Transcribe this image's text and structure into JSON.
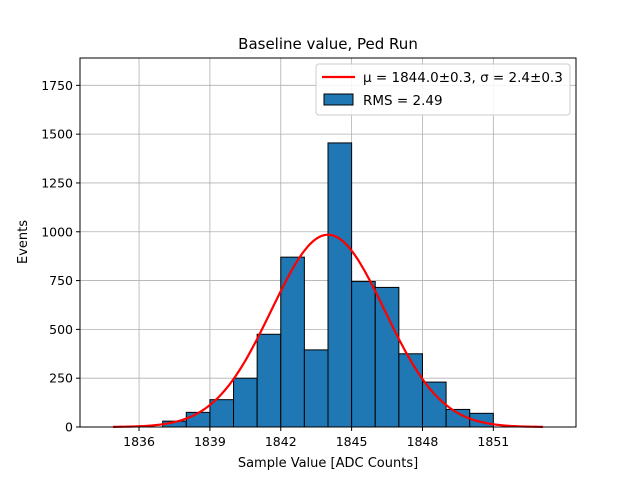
{
  "chart_data": {
    "type": "bar",
    "title": "Baseline value, Ped Run",
    "xlabel": "Sample Value [ADC Counts]",
    "ylabel": "Events",
    "xlim": [
      1833.5,
      1854.5
    ],
    "ylim": [
      0,
      1890
    ],
    "xticks": [
      1836,
      1839,
      1842,
      1845,
      1848,
      1851
    ],
    "yticks": [
      0,
      250,
      500,
      750,
      1000,
      1250,
      1500,
      1750
    ],
    "grid": true,
    "bins": [
      {
        "start": 1837.0,
        "end": 1838.0,
        "count": 30
      },
      {
        "start": 1838.0,
        "end": 1839.0,
        "count": 75
      },
      {
        "start": 1839.0,
        "end": 1840.0,
        "count": 140
      },
      {
        "start": 1840.0,
        "end": 1841.0,
        "count": 250
      },
      {
        "start": 1841.0,
        "end": 1842.0,
        "count": 475
      },
      {
        "start": 1842.0,
        "end": 1843.0,
        "count": 870
      },
      {
        "start": 1843.0,
        "end": 1844.0,
        "count": 395
      },
      {
        "start": 1844.0,
        "end": 1845.0,
        "count": 1455
      },
      {
        "start": 1845.0,
        "end": 1846.0,
        "count": 745
      },
      {
        "start": 1846.0,
        "end": 1847.0,
        "count": 715
      },
      {
        "start": 1847.0,
        "end": 1848.0,
        "count": 375
      },
      {
        "start": 1848.0,
        "end": 1849.0,
        "count": 230
      },
      {
        "start": 1849.0,
        "end": 1850.0,
        "count": 90
      },
      {
        "start": 1850.0,
        "end": 1851.0,
        "count": 70
      }
    ],
    "fit": {
      "type": "gaussian",
      "mu": 1844.0,
      "sigma": 2.4,
      "amplitude": 985,
      "x_range": [
        1834.9,
        1853.1
      ],
      "color": "#ff0000"
    },
    "bar_color": "#1f77b4",
    "legend": {
      "position": "top-right",
      "entries": [
        {
          "kind": "line",
          "label": "μ = 1844.0±0.3, σ = 2.4±0.3",
          "color": "#ff0000"
        },
        {
          "kind": "patch",
          "label": "RMS = 2.49",
          "color": "#1f77b4"
        }
      ]
    }
  }
}
